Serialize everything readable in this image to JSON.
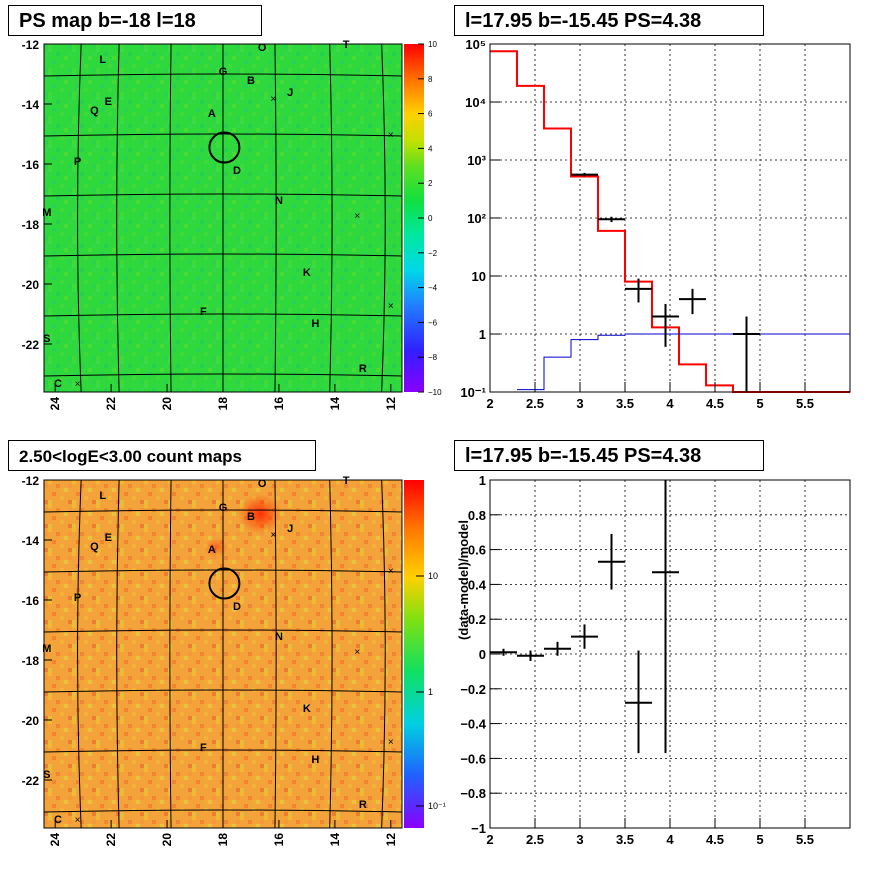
{
  "panels": {
    "ps_map": {
      "title": "PS map b=-18 l=18"
    },
    "spectrum": {
      "title": "l=17.95 b=-15.45 PS=4.38"
    },
    "count_map": {
      "title": "2.50<logE<3.00 count maps"
    },
    "residual": {
      "title": "l=17.95 b=-15.45 PS=4.38",
      "ylabel": "(data-model)/model"
    }
  },
  "map_axes": {
    "x_ticks": [
      "24",
      "22",
      "20",
      "18",
      "16",
      "14",
      "12"
    ],
    "y_ticks": [
      "-12",
      "-14",
      "-16",
      "-18",
      "-20",
      "-22"
    ],
    "xlim": [
      24.4,
      11.6
    ],
    "ylim": [
      -23.6,
      -12
    ]
  },
  "sources": [
    {
      "label": "L",
      "l": 22.3,
      "b": -12.5
    },
    {
      "label": "O",
      "l": 16.6,
      "b": -12.1
    },
    {
      "label": "T",
      "l": 13.6,
      "b": -12
    },
    {
      "label": "G",
      "l": 18.0,
      "b": -12.9
    },
    {
      "label": "B",
      "l": 17.0,
      "b": -13.2
    },
    {
      "label": "J",
      "l": 15.6,
      "b": -13.6
    },
    {
      "label": "E",
      "l": 22.1,
      "b": -13.9
    },
    {
      "label": "Q",
      "l": 22.6,
      "b": -14.2
    },
    {
      "label": "A",
      "l": 18.4,
      "b": -14.3
    },
    {
      "label": "P",
      "l": 23.2,
      "b": -15.9
    },
    {
      "label": "D",
      "l": 17.5,
      "b": -16.2
    },
    {
      "label": "N",
      "l": 16.0,
      "b": -17.2
    },
    {
      "label": "M",
      "l": 24.3,
      "b": -17.6
    },
    {
      "label": "K",
      "l": 15.0,
      "b": -19.6
    },
    {
      "label": "F",
      "l": 18.7,
      "b": -20.9
    },
    {
      "label": "H",
      "l": 14.7,
      "b": -21.3
    },
    {
      "label": "S",
      "l": 24.3,
      "b": -21.8
    },
    {
      "label": "R",
      "l": 13.0,
      "b": -22.8
    },
    {
      "label": "C",
      "l": 23.9,
      "b": -23.3
    }
  ],
  "crosses": [
    {
      "l": 16.2,
      "b": -13.8
    },
    {
      "l": 12.0,
      "b": -15.0
    },
    {
      "l": 13.2,
      "b": -17.7
    },
    {
      "l": 12.0,
      "b": -20.7
    },
    {
      "l": 23.2,
      "b": -23.3
    }
  ],
  "target_circle": {
    "l": 17.95,
    "b": -15.45
  },
  "ps_colorbar": {
    "ticks": [
      "10",
      "8",
      "6",
      "4",
      "2",
      "0",
      "−2",
      "−4",
      "−6",
      "−8",
      "−10"
    ],
    "range": [
      -10,
      10
    ]
  },
  "count_colorbar": {
    "ticks": [
      "10",
      "1",
      "10⁻¹"
    ]
  },
  "chart_data": [
    {
      "type": "line",
      "panel": "spectrum",
      "title": "l=17.95 b=-15.45 PS=4.38",
      "xlim": [
        2,
        6
      ],
      "ylim": [
        0.1,
        100000
      ],
      "yscale": "log",
      "x_ticks": [
        "2",
        "2.5",
        "3",
        "3.5",
        "4",
        "4.5",
        "5",
        "5.5"
      ],
      "y_ticks": [
        "10⁵",
        "10⁴",
        "10³",
        "10²",
        "10",
        "1",
        "10⁻¹"
      ],
      "grid": true,
      "series": [
        {
          "color": "#ff0000",
          "step_edges": [
            2.0,
            2.3,
            2.6,
            2.9,
            3.2,
            3.5,
            3.8,
            4.1,
            4.4,
            4.7,
            6.0
          ],
          "values": [
            75000,
            19000,
            3500,
            520,
            60,
            8,
            1.3,
            0.3,
            0.13,
            0.1
          ]
        },
        {
          "color": "#0000cc",
          "step_edges": [
            2.3,
            2.6,
            2.9,
            3.2,
            3.5,
            3.8,
            4.1,
            4.4,
            4.7,
            5.0,
            6.0
          ],
          "values": [
            0.11,
            0.4,
            0.8,
            0.95,
            1.0,
            1.0,
            1.0,
            1.0,
            1.0,
            1.0
          ]
        },
        {
          "color": "#000000",
          "points": [
            {
              "x": 3.05,
              "y": 560,
              "xerr": 0.15,
              "ylo": 520,
              "yhi": 600
            },
            {
              "x": 3.35,
              "y": 95,
              "xerr": 0.15,
              "ylo": 85,
              "yhi": 105
            },
            {
              "x": 3.65,
              "y": 6,
              "xerr": 0.15,
              "ylo": 3.5,
              "yhi": 9
            },
            {
              "x": 3.95,
              "y": 2,
              "xerr": 0.15,
              "ylo": 0.6,
              "yhi": 3.3
            },
            {
              "x": 4.25,
              "y": 4,
              "xerr": 0.15,
              "ylo": 2.2,
              "yhi": 6
            },
            {
              "x": 4.85,
              "y": 1,
              "xerr": 0.15,
              "ylo": 0.1,
              "yhi": 2
            }
          ]
        }
      ]
    },
    {
      "type": "scatter",
      "panel": "residual",
      "title": "l=17.95 b=-15.45 PS=4.38",
      "ylabel": "(data-model)/model",
      "xlim": [
        2,
        6
      ],
      "ylim": [
        -1,
        1
      ],
      "x_ticks": [
        "2",
        "2.5",
        "3",
        "3.5",
        "4",
        "4.5",
        "5",
        "5.5"
      ],
      "y_ticks": [
        "1",
        "0.8",
        "0.6",
        "0.4",
        "0.2",
        "0",
        "−0.2",
        "−0.4",
        "−0.6",
        "−0.8",
        "−1"
      ],
      "grid": true,
      "series": [
        {
          "color": "#000000",
          "points": [
            {
              "x": 2.15,
              "y": 0.01,
              "xerr": 0.15,
              "ylo": -0.01,
              "yhi": 0.03
            },
            {
              "x": 2.45,
              "y": -0.01,
              "xerr": 0.15,
              "ylo": -0.04,
              "yhi": 0.02
            },
            {
              "x": 2.75,
              "y": 0.03,
              "xerr": 0.15,
              "ylo": -0.01,
              "yhi": 0.07
            },
            {
              "x": 3.05,
              "y": 0.1,
              "xerr": 0.15,
              "ylo": 0.03,
              "yhi": 0.17
            },
            {
              "x": 3.35,
              "y": 0.53,
              "xerr": 0.15,
              "ylo": 0.37,
              "yhi": 0.69
            },
            {
              "x": 3.65,
              "y": -0.28,
              "xerr": 0.15,
              "ylo": -0.57,
              "yhi": 0.02
            },
            {
              "x": 3.95,
              "y": 0.47,
              "xerr": 0.15,
              "ylo": -0.57,
              "yhi": 1.0
            }
          ]
        }
      ]
    }
  ]
}
